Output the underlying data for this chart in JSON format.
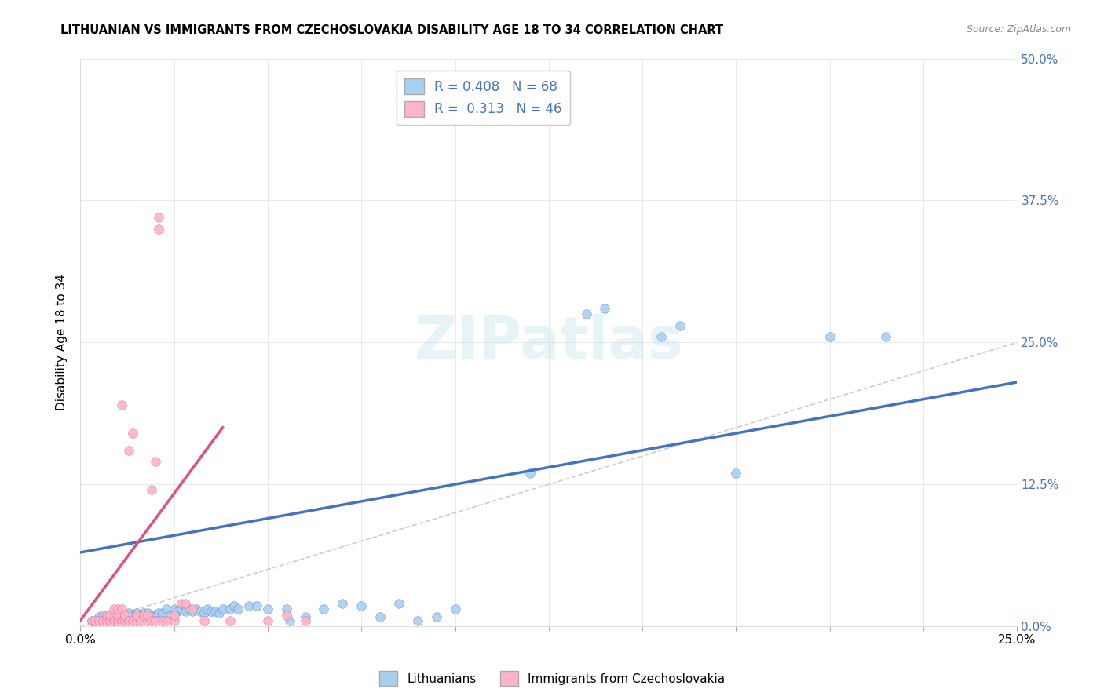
{
  "title": "LITHUANIAN VS IMMIGRANTS FROM CZECHOSLOVAKIA DISABILITY AGE 18 TO 34 CORRELATION CHART",
  "source": "Source: ZipAtlas.com",
  "ylabel": "Disability Age 18 to 34",
  "xlim": [
    0.0,
    0.25
  ],
  "ylim": [
    0.0,
    0.5
  ],
  "legend_bottom": [
    "Lithuanians",
    "Immigrants from Czechoslovakia"
  ],
  "R_blue": 0.408,
  "N_blue": 68,
  "R_pink": 0.313,
  "N_pink": 46,
  "blue_color": "#a8d0f0",
  "pink_color": "#ffb3c8",
  "blue_line_color": "#4472c4",
  "pink_line_color": "#e05080",
  "diagonal_color": "#cccccc",
  "blue_line_x": [
    0.0,
    0.25
  ],
  "blue_line_y": [
    0.065,
    0.215
  ],
  "pink_line_x": [
    0.0,
    0.038
  ],
  "pink_line_y": [
    0.005,
    0.175
  ],
  "blue_scatter": [
    [
      0.003,
      0.005
    ],
    [
      0.005,
      0.008
    ],
    [
      0.006,
      0.01
    ],
    [
      0.007,
      0.008
    ],
    [
      0.008,
      0.01
    ],
    [
      0.009,
      0.005
    ],
    [
      0.01,
      0.008
    ],
    [
      0.01,
      0.012
    ],
    [
      0.012,
      0.01
    ],
    [
      0.012,
      0.008
    ],
    [
      0.013,
      0.012
    ],
    [
      0.013,
      0.01
    ],
    [
      0.015,
      0.008
    ],
    [
      0.015,
      0.01
    ],
    [
      0.015,
      0.012
    ],
    [
      0.016,
      0.01
    ],
    [
      0.017,
      0.012
    ],
    [
      0.018,
      0.01
    ],
    [
      0.018,
      0.012
    ],
    [
      0.018,
      0.01
    ],
    [
      0.019,
      0.01
    ],
    [
      0.02,
      0.01
    ],
    [
      0.02,
      0.008
    ],
    [
      0.021,
      0.012
    ],
    [
      0.022,
      0.01
    ],
    [
      0.022,
      0.012
    ],
    [
      0.023,
      0.015
    ],
    [
      0.024,
      0.01
    ],
    [
      0.025,
      0.012
    ],
    [
      0.025,
      0.015
    ],
    [
      0.026,
      0.013
    ],
    [
      0.027,
      0.015
    ],
    [
      0.028,
      0.013
    ],
    [
      0.029,
      0.015
    ],
    [
      0.03,
      0.013
    ],
    [
      0.031,
      0.015
    ],
    [
      0.032,
      0.013
    ],
    [
      0.033,
      0.012
    ],
    [
      0.034,
      0.015
    ],
    [
      0.035,
      0.013
    ],
    [
      0.036,
      0.013
    ],
    [
      0.037,
      0.012
    ],
    [
      0.038,
      0.015
    ],
    [
      0.04,
      0.015
    ],
    [
      0.041,
      0.018
    ],
    [
      0.042,
      0.015
    ],
    [
      0.045,
      0.018
    ],
    [
      0.047,
      0.018
    ],
    [
      0.05,
      0.015
    ],
    [
      0.055,
      0.015
    ],
    [
      0.056,
      0.005
    ],
    [
      0.06,
      0.008
    ],
    [
      0.065,
      0.015
    ],
    [
      0.07,
      0.02
    ],
    [
      0.075,
      0.018
    ],
    [
      0.08,
      0.008
    ],
    [
      0.085,
      0.02
    ],
    [
      0.09,
      0.005
    ],
    [
      0.095,
      0.008
    ],
    [
      0.1,
      0.015
    ],
    [
      0.12,
      0.135
    ],
    [
      0.135,
      0.275
    ],
    [
      0.14,
      0.28
    ],
    [
      0.155,
      0.255
    ],
    [
      0.16,
      0.265
    ],
    [
      0.175,
      0.135
    ],
    [
      0.2,
      0.255
    ],
    [
      0.215,
      0.255
    ]
  ],
  "pink_scatter": [
    [
      0.003,
      0.005
    ],
    [
      0.004,
      0.005
    ],
    [
      0.005,
      0.005
    ],
    [
      0.006,
      0.005
    ],
    [
      0.007,
      0.005
    ],
    [
      0.007,
      0.01
    ],
    [
      0.008,
      0.005
    ],
    [
      0.008,
      0.01
    ],
    [
      0.009,
      0.005
    ],
    [
      0.009,
      0.015
    ],
    [
      0.01,
      0.005
    ],
    [
      0.01,
      0.01
    ],
    [
      0.01,
      0.015
    ],
    [
      0.011,
      0.005
    ],
    [
      0.011,
      0.015
    ],
    [
      0.011,
      0.195
    ],
    [
      0.012,
      0.005
    ],
    [
      0.012,
      0.01
    ],
    [
      0.013,
      0.005
    ],
    [
      0.013,
      0.155
    ],
    [
      0.014,
      0.005
    ],
    [
      0.014,
      0.17
    ],
    [
      0.015,
      0.005
    ],
    [
      0.015,
      0.01
    ],
    [
      0.016,
      0.005
    ],
    [
      0.017,
      0.01
    ],
    [
      0.018,
      0.005
    ],
    [
      0.018,
      0.01
    ],
    [
      0.019,
      0.005
    ],
    [
      0.019,
      0.12
    ],
    [
      0.02,
      0.005
    ],
    [
      0.02,
      0.145
    ],
    [
      0.021,
      0.35
    ],
    [
      0.021,
      0.36
    ],
    [
      0.022,
      0.005
    ],
    [
      0.023,
      0.005
    ],
    [
      0.025,
      0.005
    ],
    [
      0.025,
      0.01
    ],
    [
      0.027,
      0.02
    ],
    [
      0.028,
      0.02
    ],
    [
      0.03,
      0.015
    ],
    [
      0.033,
      0.005
    ],
    [
      0.04,
      0.005
    ],
    [
      0.05,
      0.005
    ],
    [
      0.055,
      0.01
    ],
    [
      0.06,
      0.005
    ]
  ]
}
